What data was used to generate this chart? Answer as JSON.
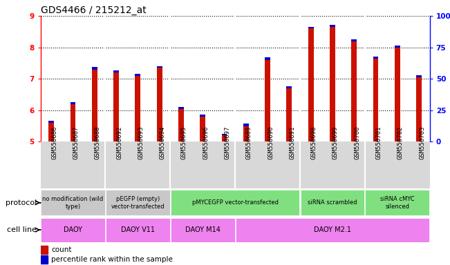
{
  "title": "GDS4466 / 215212_at",
  "samples": [
    "GSM550686",
    "GSM550687",
    "GSM550688",
    "GSM550692",
    "GSM550693",
    "GSM550694",
    "GSM550695",
    "GSM550696",
    "GSM550697",
    "GSM550689",
    "GSM550690",
    "GSM550691",
    "GSM550698",
    "GSM550699",
    "GSM550700",
    "GSM550701",
    "GSM550702",
    "GSM550703"
  ],
  "count_values": [
    5.6,
    6.2,
    7.3,
    7.2,
    7.1,
    7.35,
    6.05,
    5.8,
    5.2,
    5.5,
    7.6,
    6.7,
    8.6,
    8.65,
    8.2,
    7.65,
    8.0,
    7.05
  ],
  "percentile_values": [
    0.06,
    0.06,
    0.08,
    0.06,
    0.06,
    0.06,
    0.06,
    0.06,
    0.06,
    0.08,
    0.08,
    0.06,
    0.06,
    0.06,
    0.06,
    0.06,
    0.06,
    0.06
  ],
  "ymin": 5.0,
  "ymax": 9.0,
  "bar_color": "#cc1100",
  "percentile_color": "#0000cc",
  "protocol_groups": [
    {
      "label": "no modification (wild\ntype)",
      "start": 0,
      "end": 3,
      "color": "#c8c8c8"
    },
    {
      "label": "pEGFP (empty)\nvector-transfected",
      "start": 3,
      "end": 6,
      "color": "#c8c8c8"
    },
    {
      "label": "pMYCEGFP vector-transfected",
      "start": 6,
      "end": 12,
      "color": "#80e080"
    },
    {
      "label": "siRNA scrambled",
      "start": 12,
      "end": 15,
      "color": "#80e080"
    },
    {
      "label": "siRNA cMYC\nsilenced",
      "start": 15,
      "end": 18,
      "color": "#80e080"
    }
  ],
  "cell_line_groups": [
    {
      "label": "DAOY",
      "start": 0,
      "end": 3,
      "color": "#ee82ee"
    },
    {
      "label": "DAOY V11",
      "start": 3,
      "end": 6,
      "color": "#ee82ee"
    },
    {
      "label": "DAOY M14",
      "start": 6,
      "end": 9,
      "color": "#ee82ee"
    },
    {
      "label": "DAOY M2.1",
      "start": 9,
      "end": 18,
      "color": "#ee82ee"
    }
  ],
  "yticks_left": [
    5,
    6,
    7,
    8,
    9
  ],
  "right_tick_labels": [
    "0",
    "25",
    "50",
    "75",
    "100%"
  ],
  "title_fontsize": 10,
  "tick_fontsize": 6.5,
  "label_fontsize": 8,
  "bar_width": 0.25
}
